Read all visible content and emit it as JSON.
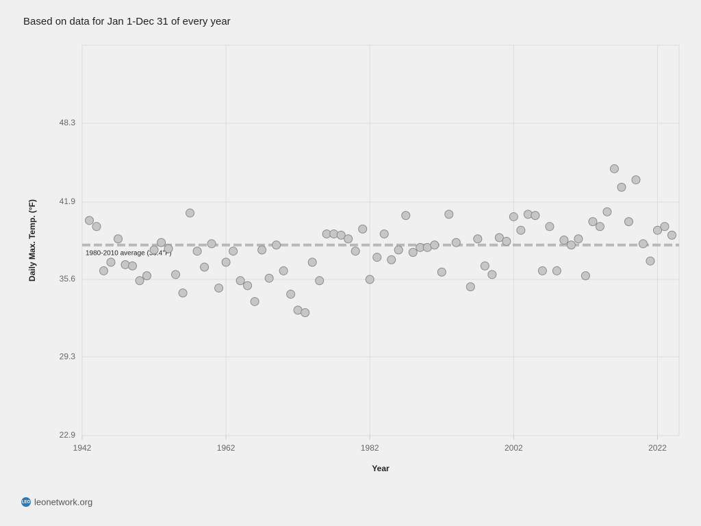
{
  "chart_data": {
    "type": "scatter",
    "title": "Based on data for Jan 1-Dec 31 of every year",
    "x_label": "Year",
    "y_label": "Daily Max. Temp. (°F)",
    "x": [
      1943,
      1944,
      1945,
      1946,
      1947,
      1948,
      1949,
      1950,
      1951,
      1952,
      1953,
      1954,
      1955,
      1956,
      1957,
      1958,
      1959,
      1960,
      1961,
      1962,
      1963,
      1964,
      1965,
      1966,
      1967,
      1968,
      1969,
      1970,
      1971,
      1972,
      1973,
      1974,
      1975,
      1976,
      1977,
      1978,
      1979,
      1980,
      1981,
      1982,
      1983,
      1984,
      1985,
      1986,
      1987,
      1988,
      1989,
      1990,
      1991,
      1992,
      1993,
      1994,
      1996,
      1997,
      1998,
      1999,
      2000,
      2001,
      2002,
      2003,
      2004,
      2005,
      2006,
      2007,
      2008,
      2009,
      2010,
      2011,
      2012,
      2013,
      2014,
      2015,
      2016,
      2017,
      2018,
      2019,
      2020,
      2021,
      2022,
      2023,
      2024
    ],
    "values": [
      40.4,
      39.9,
      36.3,
      37.0,
      38.9,
      36.8,
      36.7,
      35.5,
      35.9,
      38.0,
      38.6,
      38.1,
      36.0,
      34.5,
      41.0,
      37.9,
      36.6,
      38.5,
      34.9,
      37.0,
      37.9,
      35.5,
      35.1,
      33.8,
      38.0,
      35.7,
      38.4,
      36.3,
      34.4,
      33.1,
      32.9,
      37.0,
      35.5,
      39.3,
      39.3,
      39.2,
      38.9,
      37.9,
      39.7,
      35.6,
      37.4,
      39.3,
      37.2,
      38.0,
      40.8,
      37.8,
      38.2,
      38.2,
      38.4,
      36.2,
      40.9,
      38.6,
      35.0,
      38.9,
      36.7,
      36.0,
      39.0,
      38.7,
      40.7,
      39.6,
      40.9,
      40.8,
      36.3,
      39.9,
      36.3,
      38.8,
      38.4,
      38.9,
      35.9,
      40.3,
      39.9,
      41.1,
      44.6,
      43.1,
      40.3,
      43.7,
      38.5,
      37.1,
      39.6,
      39.9,
      39.2
    ],
    "color": "#c6c6c6",
    "xlim": [
      1942,
      2025
    ],
    "xticks": [
      1942,
      1962,
      1982,
      2002,
      2022
    ],
    "ylim": [
      22.9,
      54.65
    ],
    "yticks": [
      22.9,
      29.3,
      35.6,
      41.9,
      48.3
    ],
    "grid": true,
    "reference_line": {
      "value": 38.4,
      "label": "1980-2010 average (38.4°F)"
    }
  },
  "footer": {
    "logo": "LEO",
    "text": "leonetwork.org"
  }
}
